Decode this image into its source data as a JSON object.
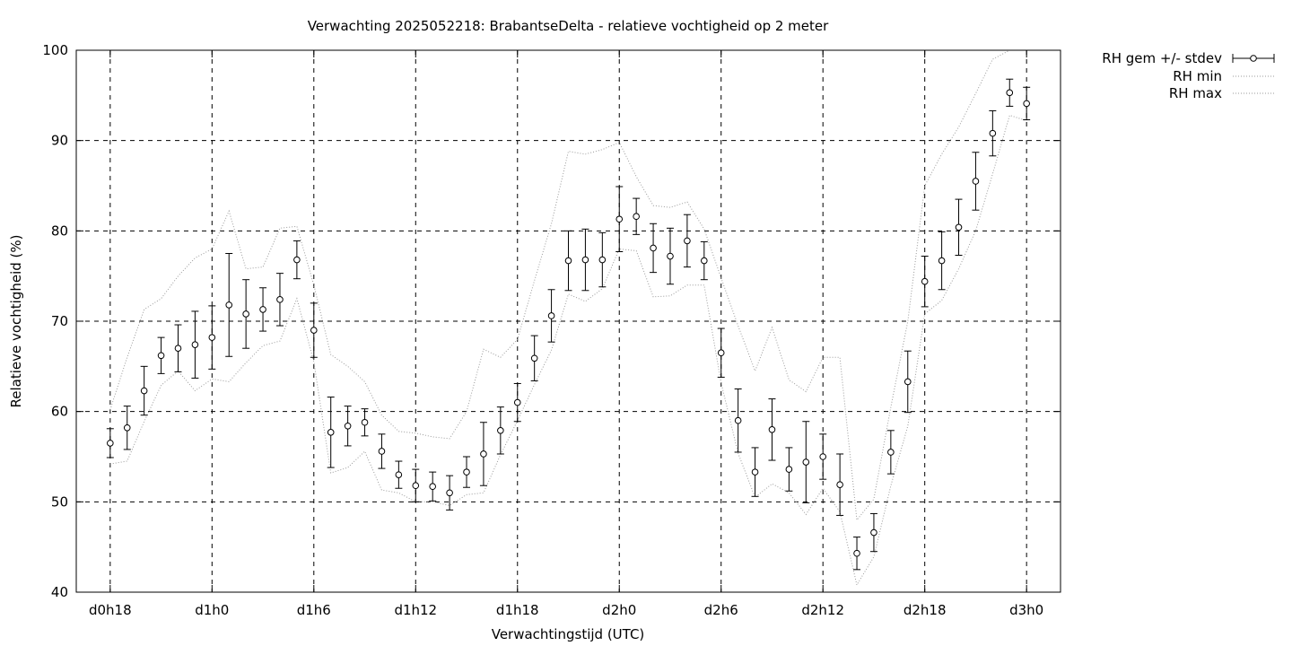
{
  "chart_data": {
    "type": "line",
    "title": "Verwachting 2025052218: BrabantseDelta - relatieve vochtigheid op 2 meter",
    "xlabel": "Verwachtingstijd (UTC)",
    "ylabel": "Relatieve vochtigheid (%)",
    "x_unit": "hours from d0h0",
    "xlim": [
      16,
      74
    ],
    "ylim": [
      40,
      100
    ],
    "y_ticks": [
      40,
      50,
      60,
      70,
      80,
      90,
      100
    ],
    "x_ticks": [
      {
        "x": 18,
        "label": "d0h18"
      },
      {
        "x": 24,
        "label": "d1h0"
      },
      {
        "x": 30,
        "label": "d1h6"
      },
      {
        "x": 36,
        "label": "d1h12"
      },
      {
        "x": 42,
        "label": "d1h18"
      },
      {
        "x": 48,
        "label": "d2h0"
      },
      {
        "x": 54,
        "label": "d2h6"
      },
      {
        "x": 60,
        "label": "d2h12"
      },
      {
        "x": 66,
        "label": "d2h18"
      },
      {
        "x": 72,
        "label": "d3h0"
      }
    ],
    "grid": true,
    "legend_position": "outside-top-right",
    "series": [
      {
        "name": "RH gem +/- stdev",
        "style": "errorbars",
        "color": "#000000",
        "x": [
          18,
          19,
          20,
          21,
          22,
          23,
          24,
          25,
          26,
          27,
          28,
          29,
          30,
          31,
          32,
          33,
          34,
          35,
          36,
          37,
          38,
          39,
          40,
          41,
          42,
          43,
          44,
          45,
          46,
          47,
          48,
          49,
          50,
          51,
          52,
          53,
          54,
          55,
          56,
          57,
          58,
          59,
          60,
          61,
          62,
          63,
          64,
          65,
          66,
          67,
          68,
          69,
          70,
          71,
          72
        ],
        "values": [
          56.5,
          58.2,
          62.3,
          66.2,
          67.0,
          67.4,
          68.2,
          71.8,
          70.8,
          71.3,
          72.4,
          76.8,
          69.0,
          57.7,
          58.4,
          58.8,
          55.6,
          53.0,
          51.8,
          51.7,
          51.0,
          53.3,
          55.3,
          57.9,
          61.0,
          65.9,
          70.6,
          76.7,
          76.8,
          76.8,
          81.3,
          81.6,
          78.1,
          77.2,
          78.9,
          76.7,
          66.5,
          59.0,
          53.3,
          58.0,
          53.6,
          54.4,
          55.0,
          51.9,
          44.3,
          46.6,
          55.5,
          63.3,
          74.4,
          76.7,
          80.4,
          85.5,
          90.8,
          95.3,
          94.1
        ],
        "stdev": [
          1.6,
          2.4,
          2.7,
          2.0,
          2.6,
          3.7,
          3.5,
          5.7,
          3.8,
          2.4,
          2.9,
          2.1,
          3.0,
          3.9,
          2.2,
          1.5,
          1.9,
          1.5,
          1.8,
          1.6,
          1.9,
          1.7,
          3.5,
          2.6,
          2.1,
          2.5,
          2.9,
          3.3,
          3.4,
          3.0,
          3.6,
          2.0,
          2.7,
          3.1,
          2.9,
          2.1,
          2.7,
          3.5,
          2.7,
          3.4,
          2.4,
          4.5,
          2.5,
          3.4,
          1.8,
          2.1,
          2.4,
          3.4,
          2.8,
          3.2,
          3.1,
          3.2,
          2.5,
          1.5,
          1.8
        ]
      },
      {
        "name": "RH min",
        "style": "dotted",
        "color": "#9a9a9a",
        "x": [
          18,
          19,
          20,
          21,
          22,
          23,
          24,
          25,
          26,
          27,
          28,
          29,
          30,
          31,
          32,
          33,
          34,
          35,
          36,
          37,
          38,
          39,
          40,
          41,
          42,
          43,
          44,
          45,
          46,
          47,
          48,
          49,
          50,
          51,
          52,
          53,
          54,
          55,
          56,
          57,
          58,
          59,
          60,
          61,
          62,
          63,
          64,
          65,
          66,
          67,
          68,
          69,
          70,
          71,
          72
        ],
        "values": [
          54.2,
          54.5,
          58.9,
          62.9,
          64.5,
          62.3,
          63.6,
          63.3,
          65.4,
          67.3,
          67.8,
          72.5,
          65.5,
          53.2,
          53.8,
          55.6,
          51.3,
          51.0,
          50.0,
          50.0,
          49.6,
          50.8,
          51.0,
          55.2,
          59.0,
          63.0,
          66.8,
          73.0,
          72.2,
          73.6,
          78.0,
          77.8,
          72.7,
          72.8,
          74.0,
          74.0,
          63.2,
          55.4,
          50.5,
          52.0,
          51.0,
          48.6,
          51.5,
          48.9,
          40.8,
          43.9,
          51.8,
          58.4,
          70.8,
          72.3,
          75.8,
          80.0,
          86.3,
          92.8,
          92.2
        ]
      },
      {
        "name": "RH max",
        "style": "dotted",
        "color": "#9a9a9a",
        "x": [
          18,
          19,
          20,
          21,
          22,
          23,
          24,
          25,
          26,
          27,
          28,
          29,
          30,
          31,
          32,
          33,
          34,
          35,
          36,
          37,
          38,
          39,
          40,
          41,
          42,
          43,
          44,
          45,
          46,
          47,
          48,
          49,
          50,
          51,
          52,
          53,
          54,
          55,
          56,
          57,
          58,
          59,
          60,
          61,
          62,
          63,
          64,
          65,
          66,
          67,
          68,
          69,
          70,
          71,
          72
        ],
        "values": [
          60.2,
          66.0,
          71.3,
          72.5,
          75.0,
          77.0,
          78.0,
          82.2,
          75.8,
          76.0,
          80.3,
          80.5,
          74.0,
          66.3,
          65.0,
          63.3,
          59.6,
          57.8,
          57.6,
          57.2,
          57.0,
          60.0,
          66.9,
          66.0,
          68.0,
          74.5,
          80.8,
          88.8,
          88.5,
          89.0,
          89.8,
          86.0,
          82.8,
          82.6,
          83.2,
          80.2,
          74.8,
          69.5,
          64.5,
          69.3,
          63.5,
          62.2,
          66.0,
          66.0,
          48.0,
          50.3,
          60.5,
          70.0,
          85.0,
          88.5,
          91.5,
          95.2,
          99.0,
          100.0,
          100.0
        ]
      }
    ]
  }
}
